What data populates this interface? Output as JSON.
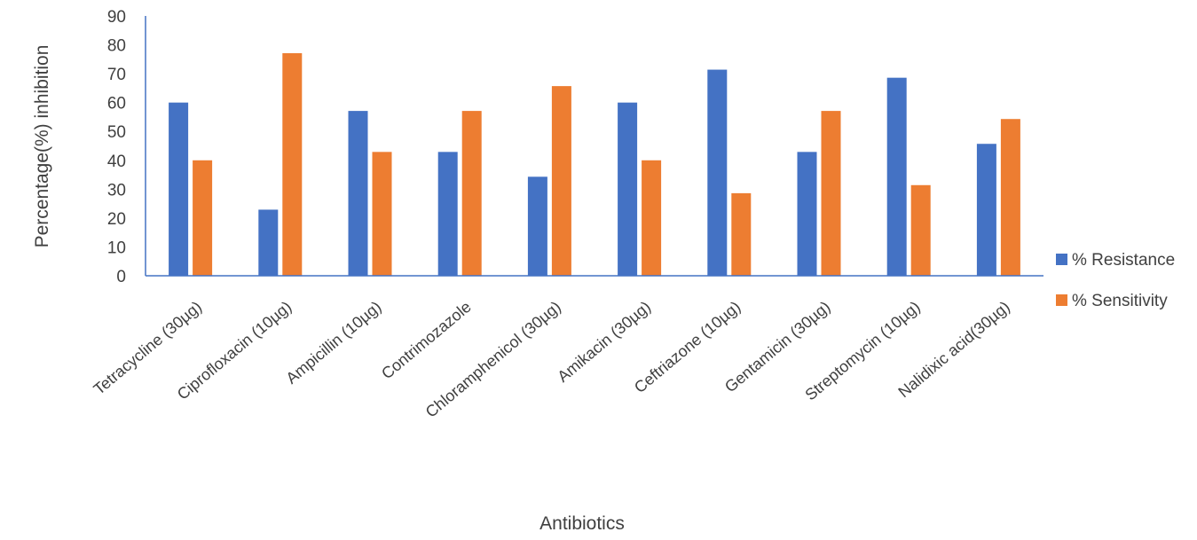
{
  "chart_data": {
    "type": "bar",
    "title": "",
    "xlabel": "Antibiotics",
    "ylabel": "Percentage(%) inhibition",
    "ylim": [
      0,
      90
    ],
    "yticks": [
      0,
      10,
      20,
      30,
      40,
      50,
      60,
      70,
      80,
      90
    ],
    "grid": false,
    "legend_position": "right",
    "categories": [
      "Tetracycline (30µg)",
      "Ciprofloxacin (10µg)",
      "Ampicillin (10µg)",
      "Contrimozazole",
      "Chloramphenicol (30µg)",
      "Amikacin (30µg)",
      "Ceftriazone (10µg)",
      "Gentamicin (30µg)",
      "Streptomycin (10µg)",
      "Nalidixic acid(30µg)"
    ],
    "series": [
      {
        "name": "% Resistance",
        "color": "#4472C4",
        "values": [
          60,
          22.9,
          57.1,
          42.9,
          34.3,
          60,
          71.4,
          42.9,
          68.6,
          45.7
        ]
      },
      {
        "name": "% Sensitivity",
        "color": "#ED7D31",
        "values": [
          40,
          77.1,
          42.9,
          57.1,
          65.7,
          40,
          28.6,
          57.1,
          31.4,
          54.3
        ]
      }
    ]
  }
}
